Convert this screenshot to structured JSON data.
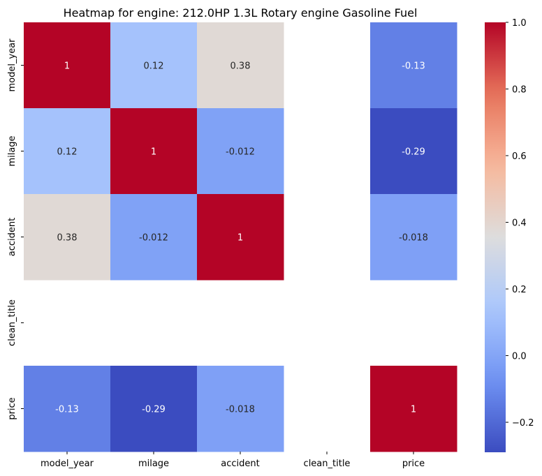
{
  "chart_data": {
    "type": "heatmap",
    "title": "Heatmap for engine: 212.0HP 1.3L Rotary engine Gasoline Fuel",
    "xlabel": "",
    "ylabel": "",
    "x_labels": [
      "model_year",
      "milage",
      "accident",
      "clean_title",
      "price"
    ],
    "y_labels": [
      "model_year",
      "milage",
      "accident",
      "clean_title",
      "price"
    ],
    "values": [
      [
        1,
        0.12,
        0.38,
        null,
        -0.13
      ],
      [
        0.12,
        1,
        -0.012,
        null,
        -0.29
      ],
      [
        0.38,
        -0.012,
        1,
        null,
        -0.018
      ],
      [
        null,
        null,
        null,
        null,
        null
      ],
      [
        -0.13,
        -0.29,
        -0.018,
        null,
        1
      ]
    ],
    "annotations": [
      [
        "1",
        "0.12",
        "0.38",
        "",
        "-0.13"
      ],
      [
        "0.12",
        "1",
        "-0.012",
        "",
        "-0.29"
      ],
      [
        "0.38",
        "-0.012",
        "1",
        "",
        "-0.018"
      ],
      [
        "",
        "",
        "",
        "",
        ""
      ],
      [
        "-0.13",
        "-0.29",
        "-0.018",
        "",
        "1"
      ]
    ],
    "colormap": "coolwarm",
    "colormap_stops": [
      "#3b4cc0",
      "#6f92f3",
      "#aac7fd",
      "#dddddd",
      "#f7b89c",
      "#e7745b",
      "#b40426"
    ],
    "vmin": -0.29,
    "vmax": 1,
    "colorbar_ticks": [
      1.0,
      0.8,
      0.6,
      0.4,
      0.2,
      0.0,
      -0.2
    ],
    "colorbar_tick_labels": [
      "1.0",
      "0.8",
      "0.6",
      "0.4",
      "0.2",
      "0.0",
      "−0.2"
    ],
    "grid": false,
    "legend": "colorbar-right"
  }
}
